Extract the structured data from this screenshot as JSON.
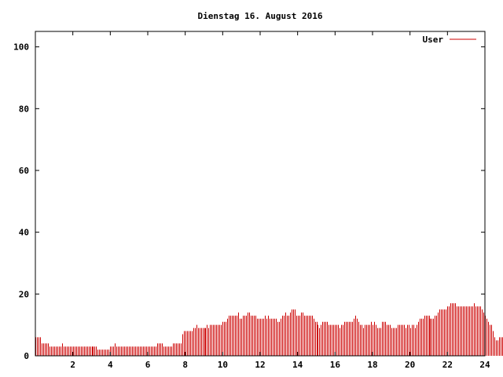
{
  "chart_data": {
    "type": "bar",
    "title": "Dienstag 16. August 2016",
    "xlabel": "",
    "ylabel": "",
    "xlim": [
      0,
      24
    ],
    "ylim": [
      0,
      105
    ],
    "xticks": [
      2,
      4,
      6,
      8,
      10,
      12,
      14,
      16,
      18,
      20,
      22,
      24
    ],
    "yticks": [
      0,
      20,
      40,
      60,
      80,
      100
    ],
    "xtick_labels": [
      "2",
      "4",
      "6",
      "8",
      "10",
      "12",
      "14",
      "16",
      "18",
      "20",
      "22",
      "24"
    ],
    "ytick_labels": [
      "0",
      "20",
      "40",
      "60",
      "80",
      "100"
    ],
    "grid": false,
    "legend_position": "top-right",
    "bar_interval_minutes": 5,
    "series": [
      {
        "name": "User",
        "color": "#cc0000",
        "values": [
          6,
          6,
          6,
          6,
          4,
          4,
          4,
          4,
          4,
          3,
          3,
          3,
          3,
          3,
          3,
          3,
          3,
          4,
          3,
          3,
          3,
          3,
          3,
          3,
          3,
          3,
          3,
          3,
          3,
          3,
          3,
          3,
          3,
          3,
          3,
          3,
          3,
          3,
          3,
          3,
          2,
          2,
          2,
          2,
          2,
          2,
          2,
          2,
          3,
          3,
          3,
          4,
          3,
          3,
          3,
          3,
          3,
          3,
          3,
          3,
          3,
          3,
          3,
          3,
          3,
          3,
          3,
          3,
          3,
          3,
          3,
          3,
          3,
          3,
          3,
          3,
          3,
          3,
          4,
          4,
          4,
          4,
          3,
          3,
          3,
          3,
          3,
          3,
          4,
          4,
          4,
          4,
          4,
          4,
          7,
          8,
          8,
          8,
          8,
          8,
          8,
          9,
          9,
          10,
          9,
          9,
          9,
          9,
          9,
          9,
          10,
          9,
          10,
          10,
          10,
          10,
          10,
          10,
          10,
          10,
          11,
          11,
          11,
          12,
          13,
          13,
          13,
          13,
          13,
          13,
          14,
          12,
          12,
          13,
          13,
          13,
          14,
          14,
          13,
          13,
          13,
          13,
          12,
          12,
          12,
          12,
          12,
          13,
          12,
          13,
          12,
          12,
          12,
          12,
          12,
          11,
          11,
          12,
          13,
          13,
          14,
          13,
          13,
          14,
          15,
          15,
          15,
          13,
          13,
          13,
          14,
          14,
          13,
          13,
          13,
          13,
          13,
          13,
          12,
          11,
          11,
          10,
          9,
          10,
          11,
          11,
          11,
          11,
          10,
          10,
          10,
          10,
          10,
          10,
          10,
          9,
          10,
          10,
          11,
          11,
          11,
          11,
          11,
          11,
          12,
          13,
          12,
          11,
          10,
          10,
          9,
          10,
          10,
          10,
          10,
          11,
          10,
          11,
          10,
          9,
          9,
          9,
          11,
          11,
          11,
          10,
          10,
          10,
          9,
          9,
          9,
          9,
          10,
          10,
          10,
          10,
          10,
          9,
          10,
          10,
          9,
          10,
          10,
          9,
          10,
          11,
          12,
          12,
          12,
          13,
          13,
          13,
          13,
          12,
          12,
          12,
          13,
          13,
          14,
          15,
          15,
          15,
          15,
          15,
          16,
          16,
          17,
          17,
          17,
          17,
          16,
          16,
          16,
          16,
          16,
          16,
          16,
          16,
          16,
          16,
          16,
          17,
          16,
          16,
          16,
          16,
          15,
          14,
          13,
          12,
          11,
          10,
          10,
          8,
          6,
          5,
          5,
          6,
          6,
          6
        ]
      }
    ]
  }
}
